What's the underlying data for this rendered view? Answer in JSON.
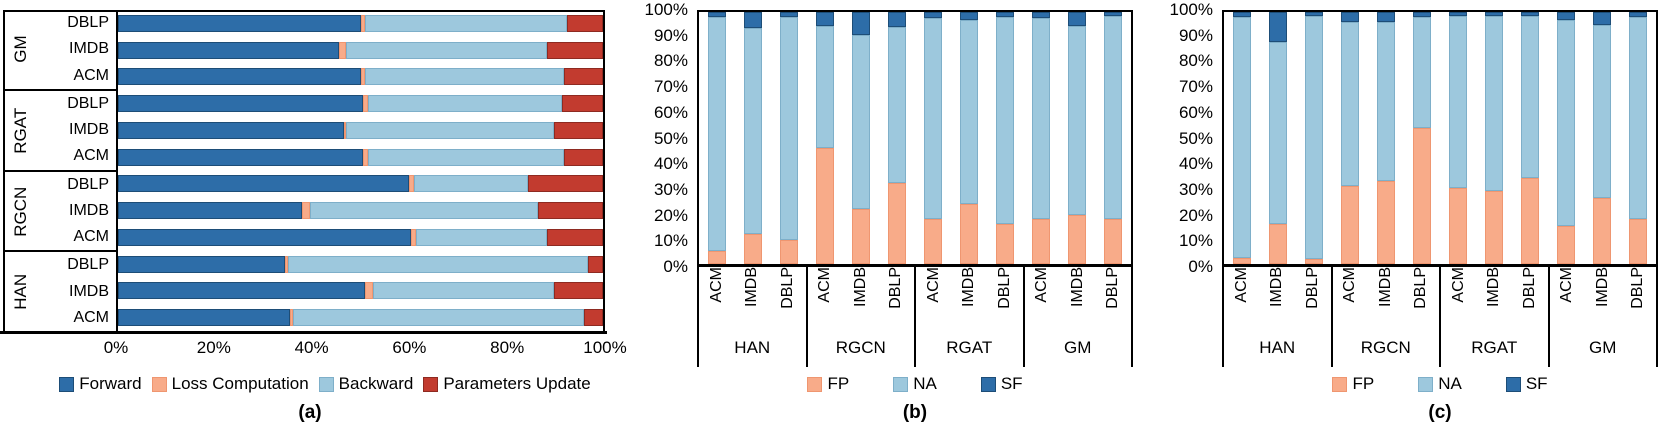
{
  "palette": {
    "dark_blue": {
      "fill": "#2d6da8",
      "edge": "#1d4d77"
    },
    "light_blue": {
      "fill": "#9dc8dd",
      "edge": "#7eafc9"
    },
    "orange": {
      "fill": "#f8ab89",
      "edge": "#ef9670"
    },
    "red": {
      "fill": "#c23b2f",
      "edge": "#8e2a21"
    },
    "axis_black": "#000000"
  },
  "chart_data": [
    {
      "id": "a",
      "type": "bar",
      "orientation": "horizontal-stacked",
      "caption": "(a)",
      "x_ticks": [
        "0%",
        "20%",
        "40%",
        "60%",
        "80%",
        "100%"
      ],
      "xlim": [
        0,
        100
      ],
      "legend": [
        {
          "label": "Forward",
          "fill": "#2d6da8",
          "edge": "#1d4d77"
        },
        {
          "label": "Loss Computation",
          "fill": "#f8ab89",
          "edge": "#ef9670"
        },
        {
          "label": "Backward",
          "fill": "#9dc8dd",
          "edge": "#7eafc9"
        },
        {
          "label": "Parameters Update",
          "fill": "#c23b2f",
          "edge": "#8e2a21"
        }
      ],
      "series_order": [
        "Forward",
        "Loss Computation",
        "Backward",
        "Parameters Update"
      ],
      "groups": [
        {
          "label": "GM",
          "rows": [
            {
              "label": "DBLP",
              "values": [
                50,
                1,
                41.5,
                7.5
              ]
            },
            {
              "label": "IMDB",
              "values": [
                45.5,
                1.5,
                41.5,
                11.5
              ]
            },
            {
              "label": "ACM",
              "values": [
                50,
                1,
                41,
                8
              ]
            }
          ]
        },
        {
          "label": "RGAT",
          "rows": [
            {
              "label": "DBLP",
              "values": [
                50.5,
                1,
                40,
                8.5
              ]
            },
            {
              "label": "IMDB",
              "values": [
                46.5,
                0.5,
                43,
                10
              ]
            },
            {
              "label": "ACM",
              "values": [
                50.5,
                1,
                40.5,
                8
              ]
            }
          ]
        },
        {
          "label": "RGCN",
          "rows": [
            {
              "label": "DBLP",
              "values": [
                60,
                1,
                23.5,
                15.5
              ]
            },
            {
              "label": "IMDB",
              "values": [
                38,
                1.5,
                47,
                13.5
              ]
            },
            {
              "label": "ACM",
              "values": [
                60.5,
                1,
                27,
                11.5
              ]
            }
          ]
        },
        {
          "label": "HAN",
          "rows": [
            {
              "label": "DBLP",
              "values": [
                34.5,
                0.5,
                62,
                3
              ]
            },
            {
              "label": "IMDB",
              "values": [
                51,
                1.5,
                37.5,
                10
              ]
            },
            {
              "label": "ACM",
              "values": [
                35.5,
                0.5,
                60,
                4
              ]
            }
          ]
        }
      ]
    },
    {
      "id": "b",
      "type": "bar",
      "orientation": "vertical-stacked",
      "caption": "(b)",
      "y_ticks": [
        "0%",
        "10%",
        "20%",
        "30%",
        "40%",
        "50%",
        "60%",
        "70%",
        "80%",
        "90%",
        "100%"
      ],
      "ylim": [
        0,
        100
      ],
      "legend": [
        {
          "label": "FP",
          "fill": "#f8ab89",
          "edge": "#ef9670"
        },
        {
          "label": "NA",
          "fill": "#9dc8dd",
          "edge": "#7eafc9"
        },
        {
          "label": "SF",
          "fill": "#2d6da8",
          "edge": "#1d4d77"
        }
      ],
      "series_order": [
        "FP",
        "NA",
        "SF"
      ],
      "groups": [
        {
          "label": "HAN",
          "bars": [
            {
              "label": "ACM",
              "values": [
                5,
                93,
                2
              ]
            },
            {
              "label": "IMDB",
              "values": [
                12,
                81.5,
                6.5
              ]
            },
            {
              "label": "DBLP",
              "values": [
                9.5,
                88.5,
                2
              ]
            }
          ]
        },
        {
          "label": "RGCN",
          "bars": [
            {
              "label": "ACM",
              "values": [
                46,
                48.5,
                5.5
              ]
            },
            {
              "label": "IMDB",
              "values": [
                22,
                69,
                9
              ]
            },
            {
              "label": "DBLP",
              "values": [
                32,
                62,
                6
              ]
            }
          ]
        },
        {
          "label": "RGAT",
          "bars": [
            {
              "label": "ACM",
              "values": [
                18,
                79.5,
                2.5
              ]
            },
            {
              "label": "IMDB",
              "values": [
                24,
                73,
                3
              ]
            },
            {
              "label": "DBLP",
              "values": [
                16,
                82,
                2
              ]
            }
          ]
        },
        {
          "label": "GM",
          "bars": [
            {
              "label": "ACM",
              "values": [
                18,
                79.5,
                2.5
              ]
            },
            {
              "label": "IMDB",
              "values": [
                19.5,
                75,
                5.5
              ]
            },
            {
              "label": "DBLP",
              "values": [
                18,
                80.5,
                1.5
              ]
            }
          ]
        }
      ]
    },
    {
      "id": "c",
      "type": "bar",
      "orientation": "vertical-stacked",
      "caption": "(c)",
      "y_ticks": [
        "0%",
        "10%",
        "20%",
        "30%",
        "40%",
        "50%",
        "60%",
        "70%",
        "80%",
        "90%",
        "100%"
      ],
      "ylim": [
        0,
        100
      ],
      "legend": [
        {
          "label": "FP",
          "fill": "#f8ab89",
          "edge": "#ef9670"
        },
        {
          "label": "NA",
          "fill": "#9dc8dd",
          "edge": "#7eafc9"
        },
        {
          "label": "SF",
          "fill": "#2d6da8",
          "edge": "#1d4d77"
        }
      ],
      "series_order": [
        "FP",
        "NA",
        "SF"
      ],
      "groups": [
        {
          "label": "HAN",
          "bars": [
            {
              "label": "ACM",
              "values": [
                2.5,
                95.5,
                2
              ]
            },
            {
              "label": "IMDB",
              "values": [
                16,
                72,
                12
              ]
            },
            {
              "label": "DBLP",
              "values": [
                2,
                96.5,
                1.5
              ]
            }
          ]
        },
        {
          "label": "RGCN",
          "bars": [
            {
              "label": "ACM",
              "values": [
                31,
                65,
                4
              ]
            },
            {
              "label": "IMDB",
              "values": [
                33,
                63,
                4
              ]
            },
            {
              "label": "DBLP",
              "values": [
                54,
                44,
                2
              ]
            }
          ]
        },
        {
          "label": "RGAT",
          "bars": [
            {
              "label": "ACM",
              "values": [
                30,
                68.5,
                1.5
              ]
            },
            {
              "label": "IMDB",
              "values": [
                29,
                69.5,
                1.5
              ]
            },
            {
              "label": "DBLP",
              "values": [
                34,
                64.5,
                1.5
              ]
            }
          ]
        },
        {
          "label": "GM",
          "bars": [
            {
              "label": "ACM",
              "values": [
                15,
                82,
                3
              ]
            },
            {
              "label": "IMDB",
              "values": [
                26,
                69,
                5
              ]
            },
            {
              "label": "DBLP",
              "values": [
                18,
                80,
                2
              ]
            }
          ]
        }
      ]
    }
  ]
}
